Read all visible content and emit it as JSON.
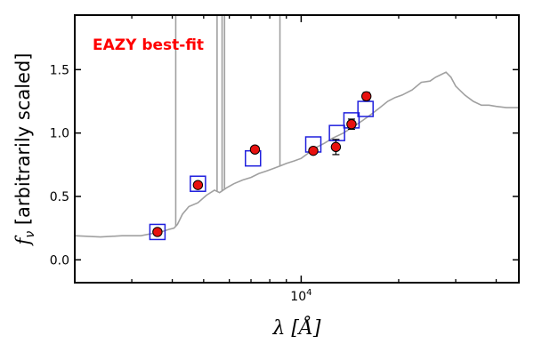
{
  "chart_data": {
    "type": "scatter",
    "title": "",
    "annotation": "EAZY best-fit",
    "xlabel": "λ [Å]",
    "ylabel": "f_ν [arbitrarily scaled]",
    "xscale": "log",
    "xlim": [
      2000,
      47000
    ],
    "ylim": [
      -0.18,
      1.93
    ],
    "y_ticks": [
      0.0,
      0.5,
      1.0,
      1.5
    ],
    "y_tick_labels": [
      "0.0",
      "0.5",
      "1.0",
      "1.5"
    ],
    "x_major_tick_labels": [
      {
        "value": 10000,
        "label": "10^4"
      }
    ],
    "grid": false,
    "legend": "none",
    "colors": {
      "template": "#a0a0a0",
      "observed_point": "#e8110f",
      "model_photometry": "#1f1fdd",
      "annotation": "#ff0000"
    },
    "series": [
      {
        "name": "",
        "kind": "template_line",
        "x": [
          2000,
          2400,
          2800,
          3200,
          3500,
          3700,
          3900,
          4050,
          4150,
          4300,
          4500,
          4800,
          5100,
          5400,
          5600,
          5900,
          6200,
          6600,
          7000,
          7400,
          7800,
          8200,
          8600,
          9000,
          9500,
          10000,
          10500,
          11000,
          11800,
          12500,
          13500,
          14500,
          15500,
          16500,
          17500,
          18500,
          19500,
          20500,
          22000,
          23500,
          25000,
          26000,
          27000,
          28000,
          29000,
          30000,
          32000,
          34000,
          36000,
          38000,
          40000,
          43000,
          47000
        ],
        "y": [
          0.19,
          0.18,
          0.19,
          0.19,
          0.21,
          0.22,
          0.24,
          0.25,
          0.28,
          0.36,
          0.42,
          0.45,
          0.51,
          0.55,
          0.53,
          0.57,
          0.6,
          0.63,
          0.65,
          0.68,
          0.7,
          0.72,
          0.74,
          0.76,
          0.78,
          0.8,
          0.84,
          0.88,
          0.92,
          0.96,
          1.0,
          1.05,
          1.1,
          1.15,
          1.2,
          1.25,
          1.28,
          1.3,
          1.34,
          1.4,
          1.41,
          1.44,
          1.46,
          1.48,
          1.44,
          1.37,
          1.3,
          1.25,
          1.22,
          1.22,
          1.21,
          1.2,
          1.2
        ],
        "emission_lines": [
          {
            "x": 4100,
            "ymax": 1.93
          },
          {
            "x": 5500,
            "ymax": 1.93
          },
          {
            "x": 5700,
            "ymax": 1.93
          },
          {
            "x": 5800,
            "ymax": 1.93
          },
          {
            "x": 8600,
            "ymax": 1.93
          }
        ]
      },
      {
        "name": "",
        "kind": "model_photometry",
        "marker": "square",
        "x": [
          3600,
          4800,
          7100,
          10900,
          12900,
          14300,
          15800
        ],
        "y": [
          0.22,
          0.6,
          0.8,
          0.91,
          1.0,
          1.1,
          1.19
        ]
      },
      {
        "name": "",
        "kind": "observed_photometry",
        "marker": "circle",
        "x": [
          3600,
          4800,
          7200,
          10900,
          12800,
          14300,
          15900
        ],
        "y": [
          0.22,
          0.59,
          0.87,
          0.86,
          0.89,
          1.07,
          1.29
        ],
        "yerr": [
          0.01,
          0.02,
          0.02,
          0.02,
          0.06,
          0.04,
          0.03
        ]
      }
    ]
  }
}
